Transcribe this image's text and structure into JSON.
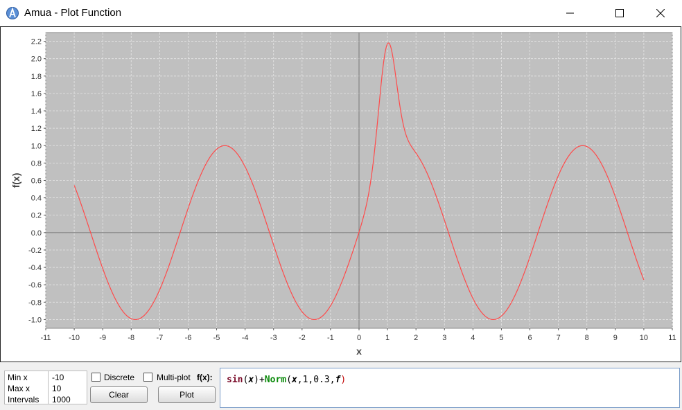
{
  "window": {
    "title": "Amua - Plot Function",
    "controls": [
      "minimize",
      "maximize",
      "close"
    ]
  },
  "params": {
    "min_x": {
      "label": "Min x",
      "value": "-10"
    },
    "max_x": {
      "label": "Max x",
      "value": "10"
    },
    "intervals": {
      "label": "Intervals",
      "value": "1000"
    }
  },
  "options": {
    "discrete": {
      "label": "Discrete",
      "checked": false
    },
    "multiplot": {
      "label": "Multi-plot",
      "checked": false
    }
  },
  "buttons": {
    "clear": "Clear",
    "plot": "Plot"
  },
  "fx_label": "f(x):",
  "expression": {
    "full": "sin(x)+Norm(x,1,0.3,f)",
    "parts": {
      "fn1": "sin",
      "p1": "(",
      "x1": "x",
      "p2": ")",
      "plus": "+",
      "fn2": "Norm",
      "p3": "(",
      "x2": "x",
      "args": ",1,0.3,",
      "f": "f",
      "p4": ")"
    }
  },
  "chart_data": {
    "type": "line",
    "function": "sin(x)+Norm(x,1,0.3,f)",
    "xlabel": "x",
    "ylabel": "f(x)",
    "xlim": [
      -11,
      11
    ],
    "ylim": [
      -1.1,
      2.3
    ],
    "x_range": [
      -10,
      10
    ],
    "intervals": 1000,
    "norm": {
      "mu": 1,
      "sigma": 0.3
    },
    "x_ticks": [
      -11,
      -10,
      -9,
      -8,
      -7,
      -6,
      -5,
      -4,
      -3,
      -2,
      -1,
      0,
      1,
      2,
      3,
      4,
      5,
      6,
      7,
      8,
      9,
      10,
      11
    ],
    "y_ticks": [
      -1.0,
      -0.8,
      -0.6,
      -0.4,
      -0.2,
      0.0,
      0.2,
      0.4,
      0.6,
      0.8,
      1.0,
      1.2,
      1.4,
      1.6,
      1.8,
      2.0,
      2.2
    ],
    "grid": true,
    "colors": {
      "plot_bg": "#c0c0c0",
      "line": "#ff4a4a",
      "grid": "#e6e6e6",
      "axis": "#777777"
    }
  }
}
